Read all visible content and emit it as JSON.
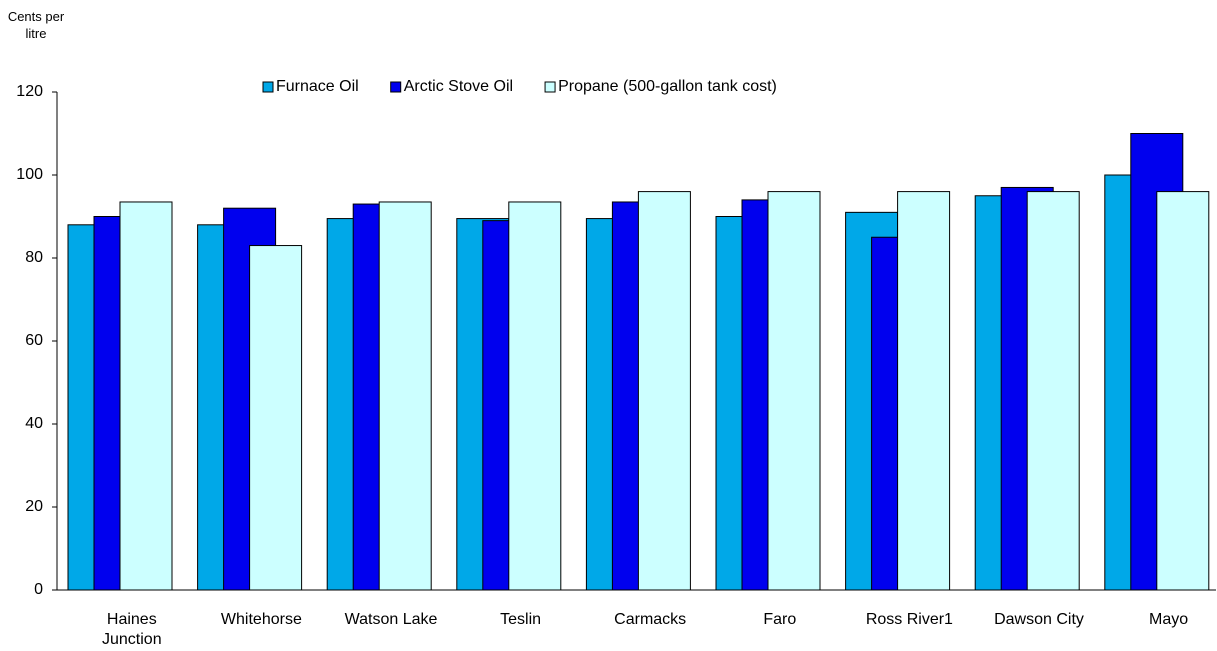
{
  "chart_data": {
    "type": "bar",
    "y_axis_label": "Cents per litre",
    "categories": [
      "Haines Junction",
      "Whitehorse",
      "Watson Lake",
      "Teslin",
      "Carmacks",
      "Faro",
      "Ross River1",
      "Dawson City",
      "Mayo"
    ],
    "series": [
      {
        "name": "Furnace Oil",
        "color": "#00a8e8",
        "values": [
          88,
          88,
          89.5,
          89.5,
          89.5,
          90,
          91,
          95,
          100
        ]
      },
      {
        "name": "Arctic Stove Oil",
        "color": "#0000ee",
        "values": [
          90,
          92,
          93,
          89,
          93.5,
          94,
          85,
          97,
          110
        ]
      },
      {
        "name": "Propane (500-gallon tank cost)",
        "color": "#ccffff",
        "values": [
          93.5,
          83,
          93.5,
          93.5,
          96,
          96,
          96,
          96,
          96
        ]
      }
    ],
    "ylim": [
      0,
      120
    ],
    "yticks": [
      0,
      20,
      40,
      60,
      80,
      100,
      120
    ],
    "grid": false,
    "legend": "top"
  }
}
